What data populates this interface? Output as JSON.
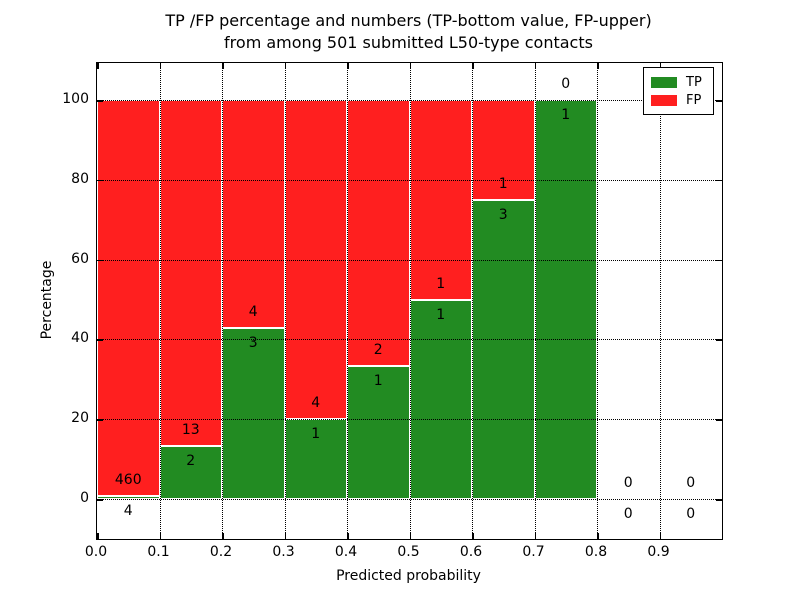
{
  "title": {
    "line1": "TP /FP percentage and numbers (TP-bottom value, FP-upper)",
    "line2": "from among 501 submitted L50-type contacts"
  },
  "axes": {
    "xlabel": "Predicted probability",
    "ylabel": "Percentage",
    "xtick_labels": [
      "0.0",
      "0.1",
      "0.2",
      "0.3",
      "0.4",
      "0.5",
      "0.6",
      "0.7",
      "0.8",
      "0.9"
    ],
    "xtick_values": [
      0.0,
      0.1,
      0.2,
      0.3,
      0.4,
      0.5,
      0.6,
      0.7,
      0.8,
      0.9
    ],
    "ytick_labels": [
      "0",
      "20",
      "40",
      "60",
      "80",
      "100"
    ],
    "ytick_values": [
      0,
      20,
      40,
      60,
      80,
      100
    ],
    "xlim": [
      0.0,
      1.0
    ],
    "ylim": [
      -10,
      109
    ],
    "grid": "dotted"
  },
  "legend": {
    "position": "upper-right",
    "items": [
      {
        "label": "TP",
        "color": "#228b22"
      },
      {
        "label": "FP",
        "color": "#ff1f1f"
      }
    ]
  },
  "colors": {
    "tp": "#228b22",
    "fp": "#ff1f1f",
    "bar_edge": "#ffffff",
    "background": "#ffffff",
    "text": "#000000"
  },
  "chart_data": {
    "type": "bar",
    "stacked": true,
    "normalized_to_percent": true,
    "bin_edges": [
      0.0,
      0.1,
      0.2,
      0.3,
      0.4,
      0.5,
      0.6,
      0.7,
      0.8,
      0.9,
      1.0
    ],
    "categories": [
      "0.0-0.1",
      "0.1-0.2",
      "0.2-0.3",
      "0.3-0.4",
      "0.4-0.5",
      "0.5-0.6",
      "0.6-0.7",
      "0.7-0.8",
      "0.8-0.9",
      "0.9-1.0"
    ],
    "series": [
      {
        "name": "TP",
        "color": "#228b22",
        "values": [
          4,
          2,
          3,
          1,
          1,
          1,
          3,
          1,
          0,
          0
        ]
      },
      {
        "name": "FP",
        "color": "#ff1f1f",
        "values": [
          460,
          13,
          4,
          4,
          2,
          1,
          1,
          0,
          0,
          0
        ]
      }
    ],
    "tp_percent": [
      0.9,
      13.3,
      42.9,
      20.0,
      33.3,
      50.0,
      75.0,
      100.0,
      0.0,
      0.0
    ],
    "title": "TP /FP percentage and numbers (TP-bottom value, FP-upper) from among 501 submitted L50-type contacts",
    "xlabel": "Predicted probability",
    "ylabel": "Percentage",
    "annotation_rule": "TP count below TP-bar top, FP count above it"
  }
}
